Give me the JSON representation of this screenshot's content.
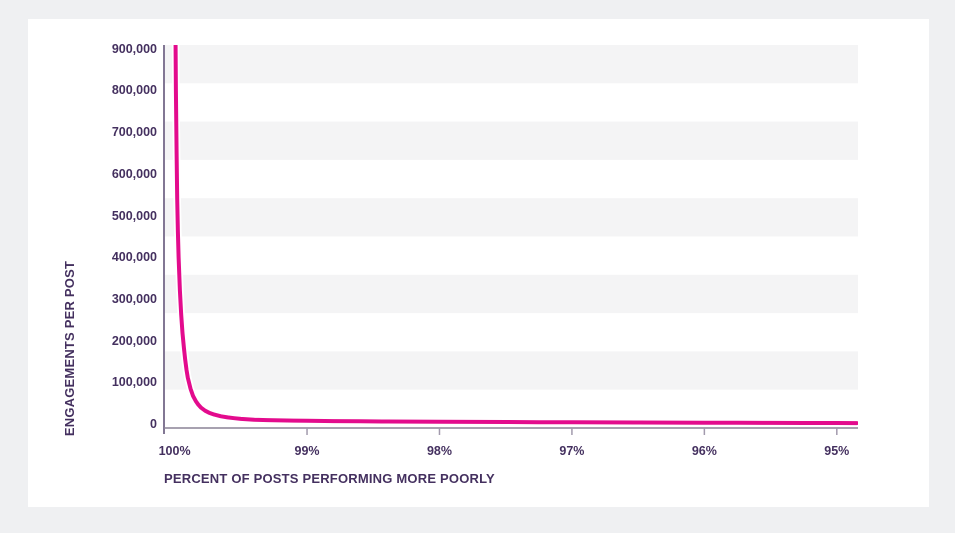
{
  "colors": {
    "background": "#eff0f2",
    "card": "#ffffff",
    "stripe": "#f4f4f5",
    "text": "#44305f",
    "line": "#e30b8d",
    "line_halo": "#ffffff",
    "y_axis": "#594a70",
    "x_axis": "#8a8296",
    "tick": "#a29aad"
  },
  "chart_data": {
    "type": "line",
    "title": "",
    "xlabel": "PERCENT OF POSTS PERFORMING MORE POORLY",
    "ylabel": "ENGAGEMENTS PER POST",
    "x_axis_reversed": true,
    "xlim": [
      100.08,
      94.84
    ],
    "ylim": [
      0,
      909000
    ],
    "grid": "horizontal-stripes",
    "legend": "none",
    "x_ticks": [
      {
        "value": 100,
        "label": "100%",
        "tick_mark": false
      },
      {
        "value": 99,
        "label": "99%",
        "tick_mark": true
      },
      {
        "value": 98,
        "label": "98%",
        "tick_mark": true
      },
      {
        "value": 97,
        "label": "97%",
        "tick_mark": true
      },
      {
        "value": 96,
        "label": "96%",
        "tick_mark": true
      },
      {
        "value": 95,
        "label": "95%",
        "tick_mark": true
      }
    ],
    "y_ticks": [
      {
        "value": 0,
        "label": "0"
      },
      {
        "value": 100000,
        "label": "100,000"
      },
      {
        "value": 200000,
        "label": "200,000"
      },
      {
        "value": 300000,
        "label": "300,000"
      },
      {
        "value": 400000,
        "label": "400,000"
      },
      {
        "value": 500000,
        "label": "500,000"
      },
      {
        "value": 600000,
        "label": "600,000"
      },
      {
        "value": 700000,
        "label": "700,000"
      },
      {
        "value": 800000,
        "label": "800,000"
      },
      {
        "value": 900000,
        "label": "900,000"
      }
    ],
    "series": [
      {
        "name": "engagements per post",
        "color": "#e30b8d",
        "points": [
          [
            100.0,
            1300000
          ],
          [
            99.995,
            1000000
          ],
          [
            99.99,
            800000
          ],
          [
            99.985,
            650000
          ],
          [
            99.98,
            540000
          ],
          [
            99.975,
            460000
          ],
          [
            99.97,
            400000
          ],
          [
            99.96,
            320000
          ],
          [
            99.95,
            262000
          ],
          [
            99.94,
            218000
          ],
          [
            99.93,
            183000
          ],
          [
            99.92,
            154000
          ],
          [
            99.91,
            130000
          ],
          [
            99.9,
            111000
          ],
          [
            99.88,
            85000
          ],
          [
            99.86,
            67000
          ],
          [
            99.84,
            55000
          ],
          [
            99.82,
            46000
          ],
          [
            99.8,
            39000
          ],
          [
            99.77,
            32000
          ],
          [
            99.74,
            27000
          ],
          [
            99.7,
            22500
          ],
          [
            99.65,
            18500
          ],
          [
            99.6,
            15800
          ],
          [
            99.55,
            13800
          ],
          [
            99.5,
            12200
          ],
          [
            99.4,
            10400
          ],
          [
            99.3,
            9300
          ],
          [
            99.2,
            8600
          ],
          [
            99.1,
            8100
          ],
          [
            99.0,
            7700
          ],
          [
            98.8,
            7000
          ],
          [
            98.6,
            6500
          ],
          [
            98.4,
            6100
          ],
          [
            98.2,
            5700
          ],
          [
            98.0,
            5400
          ],
          [
            97.75,
            5000
          ],
          [
            97.5,
            4700
          ],
          [
            97.25,
            4400
          ],
          [
            97.0,
            4100
          ],
          [
            96.75,
            3800
          ],
          [
            96.5,
            3600
          ],
          [
            96.25,
            3300
          ],
          [
            96.0,
            3100
          ],
          [
            95.75,
            2900
          ],
          [
            95.5,
            2700
          ],
          [
            95.25,
            2500
          ],
          [
            95.0,
            2300
          ],
          [
            94.85,
            2200
          ]
        ]
      }
    ]
  }
}
